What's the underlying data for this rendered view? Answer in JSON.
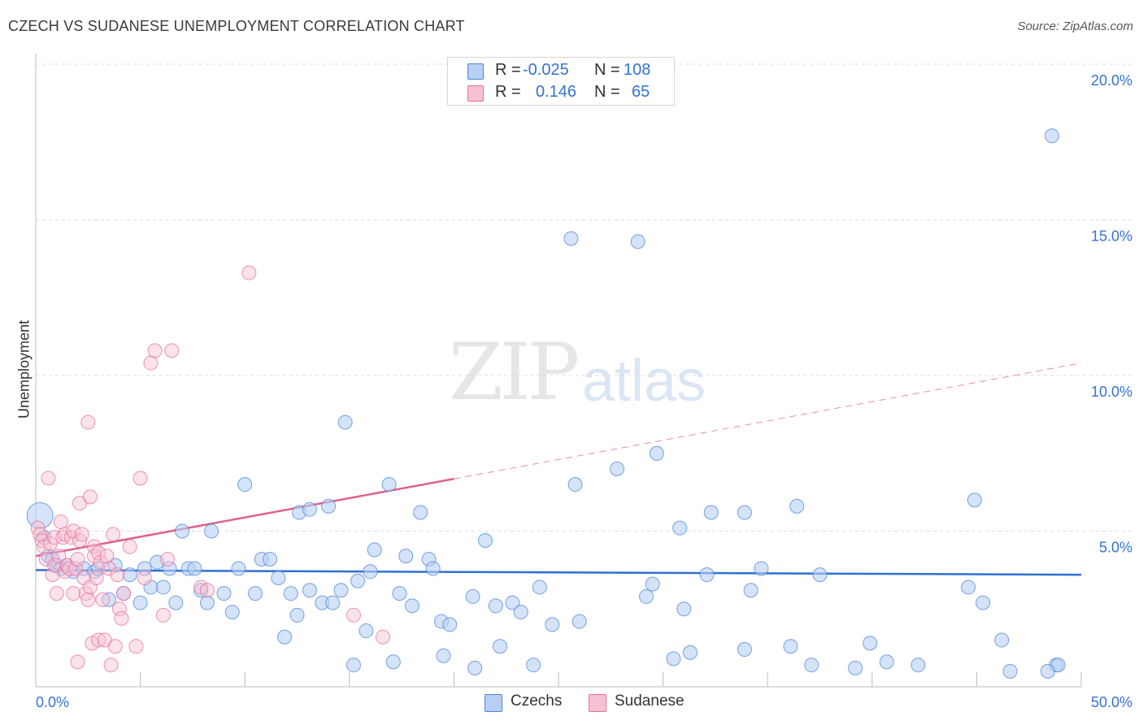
{
  "title": "CZECH VS SUDANESE UNEMPLOYMENT CORRELATION CHART",
  "source": "Source: ZipAtlas.com",
  "watermark": {
    "zip": "ZIP",
    "atlas": "atlas"
  },
  "colors": {
    "blue": "#4a86d8",
    "blue_fill": "#b9d0f3",
    "pink": "#e76f98",
    "pink_fill": "#f6c2d3",
    "axis_text": "#3572d4"
  },
  "legend": {
    "rows": [
      {
        "r_label": "R =",
        "r_value": "-0.025",
        "n_label": "N =",
        "n_value": "108"
      },
      {
        "r_label": "R =",
        "r_value": "0.146",
        "n_label": "N =",
        "n_value": "65"
      }
    ]
  },
  "bottom_legend": [
    {
      "label": "Czechs"
    },
    {
      "label": "Sudanese"
    }
  ],
  "chart_data": {
    "type": "scatter",
    "title": "CZECH VS SUDANESE UNEMPLOYMENT CORRELATION CHART",
    "xlabel": "",
    "ylabel": "Unemployment",
    "xlim": [
      0,
      50
    ],
    "ylim": [
      0,
      20
    ],
    "x_tick_labels": [
      "0.0%",
      "50.0%"
    ],
    "y_ticks": [
      5,
      10,
      15,
      20
    ],
    "y_tick_labels": [
      "5.0%",
      "10.0%",
      "15.0%",
      "20.0%"
    ],
    "grid": true,
    "legend_position": "top-center",
    "series": [
      {
        "name": "Czechs",
        "color": "#4a86d8",
        "trend": {
          "x": [
            0,
            50
          ],
          "y": [
            3.75,
            3.6
          ]
        },
        "points": [
          [
            0.2,
            5.5
          ],
          [
            0.4,
            4.8
          ],
          [
            0.6,
            4.2
          ],
          [
            0.8,
            4.1
          ],
          [
            1.0,
            3.9
          ],
          [
            1.2,
            3.8
          ],
          [
            1.5,
            3.9
          ],
          [
            1.8,
            3.7
          ],
          [
            2.3,
            3.8
          ],
          [
            2.8,
            3.7
          ],
          [
            3.0,
            3.8
          ],
          [
            3.5,
            2.8
          ],
          [
            3.8,
            3.9
          ],
          [
            4.2,
            3.0
          ],
          [
            4.5,
            3.6
          ],
          [
            5.0,
            2.7
          ],
          [
            5.2,
            3.8
          ],
          [
            5.5,
            3.2
          ],
          [
            5.8,
            4.0
          ],
          [
            6.1,
            3.2
          ],
          [
            6.4,
            3.8
          ],
          [
            6.7,
            2.7
          ],
          [
            7.0,
            5.0
          ],
          [
            7.3,
            3.8
          ],
          [
            7.6,
            3.8
          ],
          [
            7.9,
            3.1
          ],
          [
            8.2,
            2.7
          ],
          [
            8.4,
            5.0
          ],
          [
            9.0,
            3.0
          ],
          [
            9.4,
            2.4
          ],
          [
            9.7,
            3.8
          ],
          [
            10.0,
            6.5
          ],
          [
            10.5,
            3.0
          ],
          [
            10.8,
            4.1
          ],
          [
            11.2,
            4.1
          ],
          [
            11.6,
            3.5
          ],
          [
            11.9,
            1.6
          ],
          [
            12.2,
            3.0
          ],
          [
            12.5,
            2.3
          ],
          [
            12.6,
            5.6
          ],
          [
            13.1,
            3.1
          ],
          [
            13.1,
            5.7
          ],
          [
            13.7,
            2.7
          ],
          [
            14.0,
            5.8
          ],
          [
            14.2,
            2.7
          ],
          [
            14.6,
            3.1
          ],
          [
            14.8,
            8.5
          ],
          [
            15.2,
            0.7
          ],
          [
            15.4,
            3.4
          ],
          [
            15.8,
            1.8
          ],
          [
            16.0,
            3.7
          ],
          [
            16.2,
            4.4
          ],
          [
            16.9,
            6.5
          ],
          [
            17.1,
            0.8
          ],
          [
            17.4,
            3.0
          ],
          [
            17.7,
            4.2
          ],
          [
            18.0,
            2.6
          ],
          [
            18.4,
            5.6
          ],
          [
            18.8,
            4.1
          ],
          [
            19.0,
            3.8
          ],
          [
            19.4,
            2.1
          ],
          [
            19.5,
            1.0
          ],
          [
            19.8,
            2.0
          ],
          [
            20.9,
            2.9
          ],
          [
            21.0,
            0.6
          ],
          [
            21.5,
            4.7
          ],
          [
            22.0,
            2.6
          ],
          [
            22.2,
            1.3
          ],
          [
            22.8,
            2.7
          ],
          [
            23.2,
            2.4
          ],
          [
            23.8,
            0.7
          ],
          [
            24.1,
            3.2
          ],
          [
            24.7,
            2.0
          ],
          [
            25.6,
            14.4
          ],
          [
            25.8,
            6.5
          ],
          [
            26.0,
            2.1
          ],
          [
            27.8,
            7.0
          ],
          [
            28.8,
            14.3
          ],
          [
            29.2,
            2.9
          ],
          [
            29.5,
            3.3
          ],
          [
            29.7,
            7.5
          ],
          [
            30.5,
            0.9
          ],
          [
            30.8,
            5.1
          ],
          [
            31.0,
            2.5
          ],
          [
            31.3,
            1.1
          ],
          [
            32.1,
            3.6
          ],
          [
            32.3,
            5.6
          ],
          [
            33.9,
            1.2
          ],
          [
            33.9,
            5.6
          ],
          [
            34.2,
            3.1
          ],
          [
            34.7,
            3.8
          ],
          [
            36.1,
            1.3
          ],
          [
            36.4,
            5.8
          ],
          [
            37.1,
            0.7
          ],
          [
            37.5,
            3.6
          ],
          [
            39.2,
            0.6
          ],
          [
            39.9,
            1.4
          ],
          [
            40.7,
            0.8
          ],
          [
            42.2,
            0.7
          ],
          [
            44.6,
            3.2
          ],
          [
            44.9,
            6.0
          ],
          [
            45.3,
            2.7
          ],
          [
            46.2,
            1.5
          ],
          [
            46.6,
            0.5
          ],
          [
            48.6,
            17.7
          ],
          [
            48.8,
            0.7
          ],
          [
            48.9,
            0.7
          ],
          [
            48.4,
            0.5
          ]
        ]
      },
      {
        "name": "Sudanese",
        "color": "#e76f98",
        "trend": {
          "x": [
            0,
            50
          ],
          "y": [
            4.2,
            10.4
          ],
          "solid_until_x": 20
        },
        "points": [
          [
            0.1,
            5.1
          ],
          [
            0.2,
            4.9
          ],
          [
            0.3,
            4.7
          ],
          [
            0.4,
            4.5
          ],
          [
            0.5,
            4.1
          ],
          [
            0.6,
            6.7
          ],
          [
            0.7,
            4.6
          ],
          [
            0.8,
            3.6
          ],
          [
            0.9,
            3.9
          ],
          [
            0.9,
            4.8
          ],
          [
            1.0,
            3.0
          ],
          [
            1.1,
            4.2
          ],
          [
            1.2,
            5.3
          ],
          [
            1.3,
            4.8
          ],
          [
            1.4,
            3.7
          ],
          [
            1.4,
            4.9
          ],
          [
            1.5,
            3.9
          ],
          [
            1.6,
            3.8
          ],
          [
            1.7,
            4.8
          ],
          [
            1.8,
            3.0
          ],
          [
            1.8,
            5.0
          ],
          [
            1.9,
            3.8
          ],
          [
            2.0,
            4.1
          ],
          [
            2.0,
            0.8
          ],
          [
            2.1,
            5.9
          ],
          [
            2.1,
            4.7
          ],
          [
            2.2,
            4.9
          ],
          [
            2.3,
            3.5
          ],
          [
            2.4,
            3.0
          ],
          [
            2.5,
            8.5
          ],
          [
            2.5,
            2.8
          ],
          [
            2.6,
            6.1
          ],
          [
            2.6,
            3.2
          ],
          [
            2.7,
            1.4
          ],
          [
            2.8,
            4.5
          ],
          [
            2.8,
            4.2
          ],
          [
            2.9,
            3.5
          ],
          [
            3.0,
            1.5
          ],
          [
            3.0,
            4.3
          ],
          [
            3.1,
            4.0
          ],
          [
            3.2,
            2.8
          ],
          [
            3.3,
            1.5
          ],
          [
            3.4,
            4.2
          ],
          [
            3.5,
            3.8
          ],
          [
            3.6,
            0.7
          ],
          [
            3.7,
            4.9
          ],
          [
            3.8,
            1.3
          ],
          [
            3.9,
            3.6
          ],
          [
            4.0,
            2.5
          ],
          [
            4.1,
            2.2
          ],
          [
            4.2,
            3.0
          ],
          [
            4.5,
            4.5
          ],
          [
            4.8,
            1.3
          ],
          [
            5.0,
            6.7
          ],
          [
            5.2,
            3.5
          ],
          [
            5.5,
            10.4
          ],
          [
            5.7,
            10.8
          ],
          [
            6.1,
            2.3
          ],
          [
            6.3,
            4.1
          ],
          [
            6.5,
            10.8
          ],
          [
            7.9,
            3.2
          ],
          [
            8.2,
            3.1
          ],
          [
            10.2,
            13.3
          ],
          [
            15.2,
            2.3
          ],
          [
            16.6,
            1.6
          ]
        ]
      }
    ]
  }
}
